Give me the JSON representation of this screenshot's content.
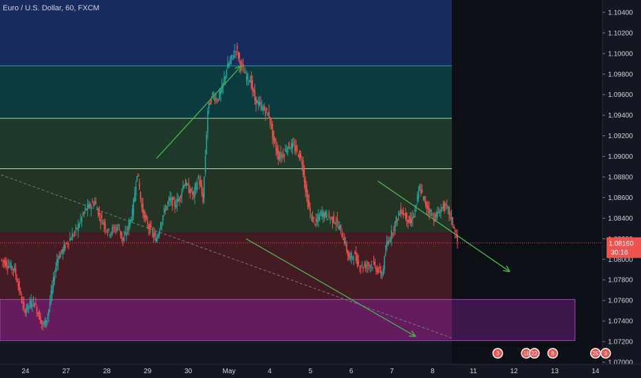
{
  "chart_data": {
    "type": "candlestick",
    "title": "Euro / U.S. Dollar, 60, FXCM",
    "ylim": [
      1.0698,
      1.1052
    ],
    "y_ticks": [
      "1.10400",
      "1.10200",
      "1.10000",
      "1.09800",
      "1.09600",
      "1.09400",
      "1.09200",
      "1.09000",
      "1.08800",
      "1.08600",
      "1.08400",
      "1.08200",
      "1.08000",
      "1.07800",
      "1.07600",
      "1.07400",
      "1.07200",
      "1.07000"
    ],
    "x_ticks": [
      {
        "label": "24",
        "slot": 0
      },
      {
        "label": "27",
        "slot": 1
      },
      {
        "label": "28",
        "slot": 2
      },
      {
        "label": "29",
        "slot": 3
      },
      {
        "label": "30",
        "slot": 4
      },
      {
        "label": "May",
        "slot": 5
      },
      {
        "label": "4",
        "slot": 6
      },
      {
        "label": "5",
        "slot": 7
      },
      {
        "label": "6",
        "slot": 8
      },
      {
        "label": "7",
        "slot": 9
      },
      {
        "label": "8",
        "slot": 10
      },
      {
        "label": "11",
        "slot": 11
      },
      {
        "label": "12",
        "slot": 12
      },
      {
        "label": "13",
        "slot": 13
      },
      {
        "label": "14",
        "slot": 14
      }
    ],
    "last_price": {
      "label": "1.08160",
      "value": 1.0816,
      "countdown": "30:16"
    },
    "candle_path": [
      [
        0,
        1.08
      ],
      [
        3,
        1.079
      ],
      [
        5,
        1.075
      ],
      [
        7,
        1.076
      ],
      [
        9,
        1.0735
      ],
      [
        10,
        1.0745
      ],
      [
        12,
        1.08
      ],
      [
        14,
        1.0815
      ],
      [
        16,
        1.0828
      ],
      [
        18,
        1.0848
      ],
      [
        20,
        1.0856
      ],
      [
        21,
        1.0842
      ],
      [
        23,
        1.0826
      ],
      [
        25,
        1.0832
      ],
      [
        26,
        1.0818
      ],
      [
        27,
        1.083
      ],
      [
        28,
        1.0845
      ],
      [
        29,
        1.0885
      ],
      [
        30,
        1.085
      ],
      [
        31,
        1.0835
      ],
      [
        32,
        1.0828
      ],
      [
        33,
        1.0818
      ],
      [
        34,
        1.0835
      ],
      [
        35,
        1.085
      ],
      [
        36,
        1.0858
      ],
      [
        37,
        1.0853
      ],
      [
        38,
        1.086
      ],
      [
        39,
        1.0875
      ],
      [
        40,
        1.0868
      ],
      [
        41,
        1.0862
      ],
      [
        42,
        1.088
      ],
      [
        43,
        1.0858
      ],
      [
        44,
        1.0945
      ],
      [
        45,
        1.096
      ],
      [
        46,
        1.0955
      ],
      [
        47,
        1.0965
      ],
      [
        48,
        1.0985
      ],
      [
        49,
        1.0995
      ],
      [
        50,
        1.1005
      ],
      [
        51,
        1.099
      ],
      [
        52,
        1.0978
      ],
      [
        53,
        1.0975
      ],
      [
        54,
        1.0955
      ],
      [
        55,
        1.095
      ],
      [
        56,
        1.0945
      ],
      [
        57,
        1.094
      ],
      [
        58,
        1.0915
      ],
      [
        59,
        1.09
      ],
      [
        60,
        1.0902
      ],
      [
        61,
        1.091
      ],
      [
        62,
        1.091
      ],
      [
        63,
        1.0905
      ],
      [
        64,
        1.0895
      ],
      [
        65,
        1.086
      ],
      [
        66,
        1.084
      ],
      [
        67,
        1.0835
      ],
      [
        68,
        1.0845
      ],
      [
        69,
        1.0843
      ],
      [
        70,
        1.084
      ],
      [
        71,
        1.0838
      ],
      [
        72,
        1.083
      ],
      [
        73,
        1.0818
      ],
      [
        74,
        1.08
      ],
      [
        75,
        1.0805
      ],
      [
        76,
        1.0795
      ],
      [
        77,
        1.0793
      ],
      [
        78,
        1.0795
      ],
      [
        79,
        1.0795
      ],
      [
        80,
        1.079
      ],
      [
        81,
        1.0785
      ],
      [
        82,
        1.0815
      ],
      [
        83,
        1.0825
      ],
      [
        84,
        1.0838
      ],
      [
        85,
        1.0848
      ],
      [
        86,
        1.0842
      ],
      [
        87,
        1.0835
      ],
      [
        88,
        1.0848
      ],
      [
        89,
        1.087
      ],
      [
        90,
        1.0855
      ],
      [
        91,
        1.0848
      ],
      [
        92,
        1.084
      ],
      [
        93,
        1.0845
      ],
      [
        94,
        1.0852
      ],
      [
        95,
        1.0848
      ],
      [
        96,
        1.0835
      ],
      [
        97,
        1.0816
      ]
    ],
    "horizontal_lines": [
      {
        "value": 1.0988,
        "color": "#26a69a"
      },
      {
        "value": 1.0937,
        "color": "#a5d6a7"
      },
      {
        "value": 1.0888,
        "color": "#c5e1a5"
      },
      {
        "value": 1.0816,
        "color": "#ef5350",
        "style": "dotted"
      }
    ],
    "fib_zones": [
      {
        "from": 1.1052,
        "to": 1.0988,
        "color": "#2962ff",
        "opacity": 0.28
      },
      {
        "from": 1.0988,
        "to": 1.0937,
        "color": "#00897b",
        "opacity": 0.32
      },
      {
        "from": 1.0937,
        "to": 1.0888,
        "color": "#43a047",
        "opacity": 0.25
      },
      {
        "from": 1.0888,
        "to": 1.0826,
        "color": "#558b2f",
        "opacity": 0.25
      },
      {
        "from": 1.0826,
        "to": 1.0758,
        "color": "#c62828",
        "opacity": 0.28
      },
      {
        "from": 1.0758,
        "to": 1.0722,
        "color": "#ad1457",
        "opacity": 0.35
      }
    ],
    "purple_zone": {
      "from": 1.0761,
      "to": 1.0721,
      "color": "#9c27b0"
    },
    "trend_line": {
      "from": [
        0,
        1.0882
      ],
      "to": [
        77,
        1.0723
      ]
    },
    "arrows": [
      {
        "from": [
          33,
          1.0898
        ],
        "to": [
          51,
          1.0988
        ]
      },
      {
        "from": [
          52,
          1.082
        ],
        "to": [
          88,
          1.0725
        ]
      },
      {
        "from": [
          80,
          1.0876
        ],
        "to": [
          108,
          1.0788
        ]
      }
    ],
    "events": [
      {
        "label": "3",
        "slot": 11.6
      },
      {
        "label": "11",
        "slot": 12.3
      },
      {
        "label": "22",
        "slot": 12.5
      },
      {
        "label": "8",
        "slot": 12.95
      },
      {
        "label": "25",
        "slot": 14.0
      },
      {
        "label": "9",
        "slot": 14.25
      }
    ]
  }
}
